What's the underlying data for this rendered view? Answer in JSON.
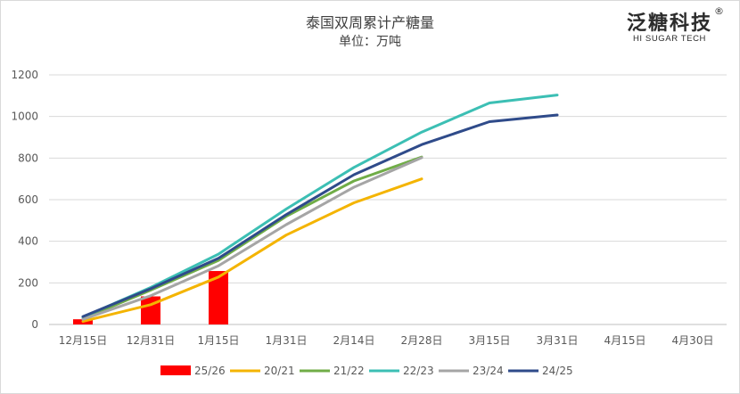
{
  "chart_data": {
    "type": "line",
    "title": "泰国双周累计产糖量",
    "subtitle": "单位：万吨",
    "categories": [
      "12月15日",
      "12月31日",
      "1月15日",
      "1月31日",
      "2月14日",
      "2月28日",
      "3月15日",
      "3月31日",
      "4月15日",
      "4月30日"
    ],
    "ylim": [
      0,
      1200
    ],
    "yticks": [
      0,
      200,
      400,
      600,
      800,
      1000,
      1200
    ],
    "grid": true,
    "legend_position": "bottom",
    "series": [
      {
        "name": "25/26",
        "type": "bar",
        "color": "#ff0000",
        "values": [
          25,
          135,
          257,
          null,
          null,
          null,
          null,
          null,
          null,
          null
        ]
      },
      {
        "name": "20/21",
        "type": "line",
        "color": "#f4b400",
        "values": [
          15,
          95,
          228,
          430,
          585,
          700,
          null,
          null,
          null,
          null
        ]
      },
      {
        "name": "21/22",
        "type": "line",
        "color": "#70ad47",
        "values": [
          28,
          165,
          308,
          520,
          690,
          805,
          null,
          null,
          null,
          null
        ]
      },
      {
        "name": "22/23",
        "type": "line",
        "color": "#3cbfb4",
        "values": [
          35,
          178,
          338,
          555,
          755,
          925,
          1065,
          1103,
          null,
          null
        ]
      },
      {
        "name": "23/24",
        "type": "line",
        "color": "#a5a5a5",
        "values": [
          25,
          138,
          282,
          480,
          660,
          802,
          null,
          null,
          null,
          null
        ]
      },
      {
        "name": "24/25",
        "type": "line",
        "color": "#2f4b8a",
        "values": [
          38,
          172,
          318,
          528,
          720,
          865,
          975,
          1007,
          null,
          null
        ]
      }
    ]
  },
  "brand": {
    "name_cn": "泛糖科技",
    "name_en": "HI SUGAR TECH",
    "reg": "®"
  }
}
